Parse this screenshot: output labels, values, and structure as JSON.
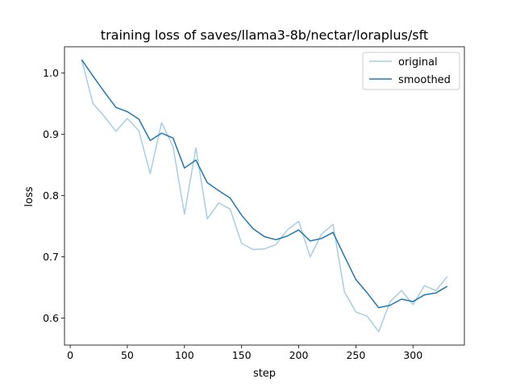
{
  "chart_data": {
    "type": "line",
    "title": "training loss of saves/llama3-8b/nectar/loraplus/sft",
    "xlabel": "step",
    "ylabel": "loss",
    "xlim": [
      -5,
      345
    ],
    "ylim": [
      0.556,
      1.043
    ],
    "xticks": [
      0,
      50,
      100,
      150,
      200,
      250,
      300
    ],
    "yticks": [
      0.6,
      0.7,
      0.8,
      0.9,
      1.0
    ],
    "ytick_labels": [
      "0.6",
      "0.7",
      "0.8",
      "0.9",
      "1.0"
    ],
    "legend_position": "upper right",
    "x": [
      10,
      20,
      30,
      40,
      50,
      60,
      70,
      80,
      90,
      100,
      110,
      120,
      130,
      140,
      150,
      160,
      170,
      180,
      190,
      200,
      210,
      220,
      230,
      240,
      250,
      260,
      270,
      280,
      290,
      300,
      310,
      320,
      330
    ],
    "series": [
      {
        "name": "original",
        "color": "#a6cee3",
        "values": [
          1.022,
          0.95,
          0.929,
          0.905,
          0.926,
          0.906,
          0.836,
          0.919,
          0.88,
          0.77,
          0.878,
          0.762,
          0.788,
          0.778,
          0.722,
          0.712,
          0.713,
          0.72,
          0.744,
          0.758,
          0.7,
          0.737,
          0.753,
          0.643,
          0.61,
          0.603,
          0.578,
          0.627,
          0.645,
          0.622,
          0.653,
          0.645,
          0.668
        ]
      },
      {
        "name": "smoothed",
        "color": "#1f78b4",
        "values": [
          1.022,
          0.995,
          0.969,
          0.944,
          0.937,
          0.925,
          0.89,
          0.902,
          0.894,
          0.845,
          0.858,
          0.821,
          0.808,
          0.796,
          0.768,
          0.746,
          0.733,
          0.728,
          0.734,
          0.744,
          0.726,
          0.73,
          0.74,
          0.701,
          0.663,
          0.641,
          0.617,
          0.621,
          0.631,
          0.627,
          0.638,
          0.641,
          0.652
        ]
      }
    ]
  }
}
